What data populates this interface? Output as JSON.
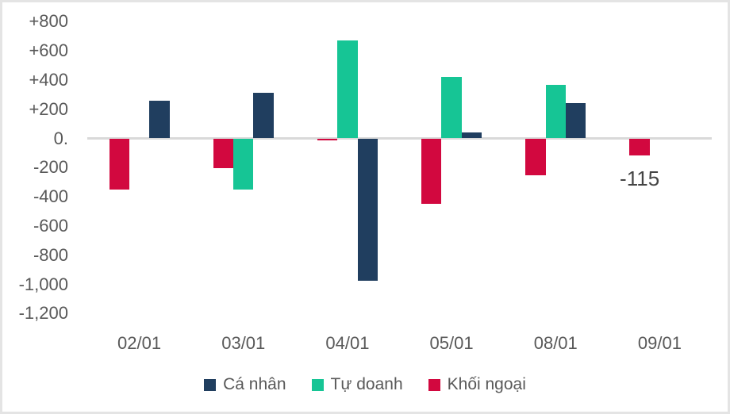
{
  "chart_data": {
    "type": "bar",
    "title": "",
    "categories": [
      "02/01",
      "03/01",
      "04/01",
      "05/01",
      "08/01",
      "09/01"
    ],
    "series": [
      {
        "name": "Cá nhân",
        "color": "#203E5F",
        "values": [
          260,
          310,
          -975,
          40,
          240,
          0
        ]
      },
      {
        "name": "Tự doanh",
        "color": "#16C595",
        "values": [
          0,
          -350,
          670,
          420,
          365,
          0
        ]
      },
      {
        "name": "Khối ngoại",
        "color": "#D2083F",
        "values": [
          -350,
          -205,
          -15,
          -450,
          -250,
          -115
        ]
      }
    ],
    "bar_plot_order": [
      "Khối ngoại",
      "Tự doanh",
      "Cá nhân"
    ],
    "y_axis": {
      "min": -1200,
      "max": 800,
      "step": 200,
      "tick_labels": [
        "+800",
        "+600",
        "+400",
        "+200",
        "0.",
        "-200",
        "-400",
        "-600",
        "-800",
        "-1,000",
        "-1,200"
      ],
      "tick_color": "#595959"
    },
    "x_axis": {
      "tick_color": "#595959"
    },
    "gridlines": "zero-line-only",
    "zero_line_color": "#D9D9D9",
    "legend": {
      "position": "bottom-center",
      "entries": [
        "Cá nhân",
        "Tự doanh",
        "Khối ngoại"
      ]
    },
    "annotations": [
      {
        "text": "-115",
        "category": "09/01",
        "series": "Khối ngoại",
        "color": "#444444"
      }
    ]
  }
}
